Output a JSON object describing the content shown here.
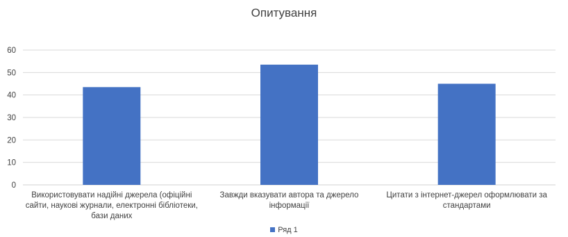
{
  "chart_data": {
    "type": "bar",
    "title": "Опитування",
    "xlabel": "",
    "ylabel": "",
    "categories": [
      "Використовувати надійні джерела (офіційні сайти, наукові журнали, електронні бібліотеки, бази даних",
      "Завжди вказувати автора та джерело інформації",
      "Цитати з інтернет-джерел оформлювати за стандартами"
    ],
    "series": [
      {
        "name": "Ряд 1",
        "values": [
          43.5,
          53.5,
          45
        ],
        "color": "#4472C4"
      }
    ],
    "ylim": [
      0,
      60
    ],
    "yticks": [
      "0",
      "10",
      "20",
      "30",
      "40",
      "50",
      "60"
    ],
    "grid": true,
    "legend_position": "bottom"
  }
}
